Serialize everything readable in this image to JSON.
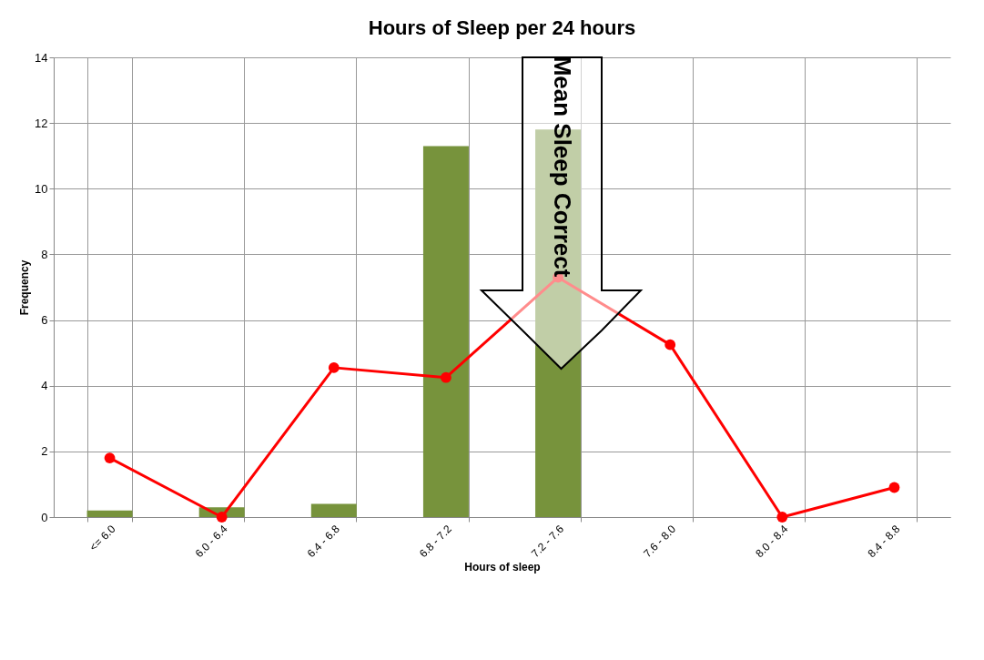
{
  "chart_data": {
    "type": "bar",
    "title": "Hours of Sleep per 24 hours",
    "xlabel": "Hours of sleep",
    "ylabel": "Frequency",
    "categories": [
      "<= 6.0",
      "6.0 - 6.4",
      "6.4 - 6.8",
      "6.8 - 7.2",
      "7.2 - 7.6",
      "7.6 - 8.0",
      "8.0 - 8.4",
      "8.4 - 8.8"
    ],
    "series": [
      {
        "color": "#77933c",
        "values": [
          0.2,
          0.3,
          0.4,
          11.3,
          11.8,
          null,
          null,
          null
        ]
      },
      {
        "type": "line",
        "color": "#ff0000",
        "marker": "circle",
        "values": [
          1.8,
          0,
          4.55,
          4.25,
          7.3,
          5.25,
          0,
          0.9
        ]
      }
    ],
    "ylim": [
      0,
      14
    ],
    "yticks": [
      0,
      2,
      4,
      6,
      8,
      10,
      12,
      14
    ],
    "grid": true,
    "annotations": [
      "Mean Sleep Correct"
    ]
  }
}
